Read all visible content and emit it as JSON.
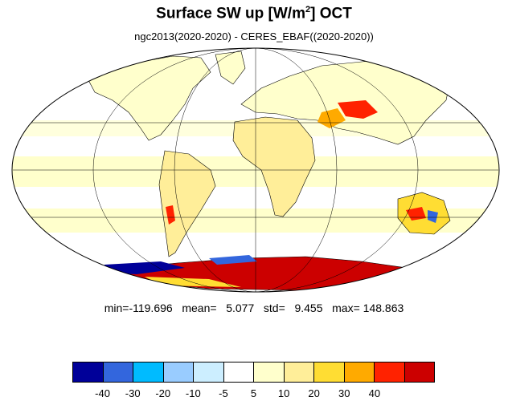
{
  "title": {
    "main": "Surface SW up [W/m",
    "sup": "2",
    "tail": "]  OCT"
  },
  "subtitle": "ngc2013(2020-2020) - CERES_EBAF((2020-2020))",
  "stats": "min=-119.696   mean=   5.077   std=   9.455   max= 148.863",
  "colorbar": {
    "colors": [
      "#000099",
      "#3366dd",
      "#00bbff",
      "#99ccff",
      "#cceeff",
      "#ffffff",
      "#ffffcc",
      "#ffee99",
      "#ffdd33",
      "#ffaa00",
      "#ff2200",
      "#cc0000"
    ],
    "labels": [
      "-40",
      "-30",
      "-20",
      "-10",
      "-5",
      "5",
      "10",
      "20",
      "30",
      "40"
    ]
  },
  "map": {
    "projection": "Mollweide",
    "background": "#ffffcc",
    "coastline_color": "#000000"
  }
}
